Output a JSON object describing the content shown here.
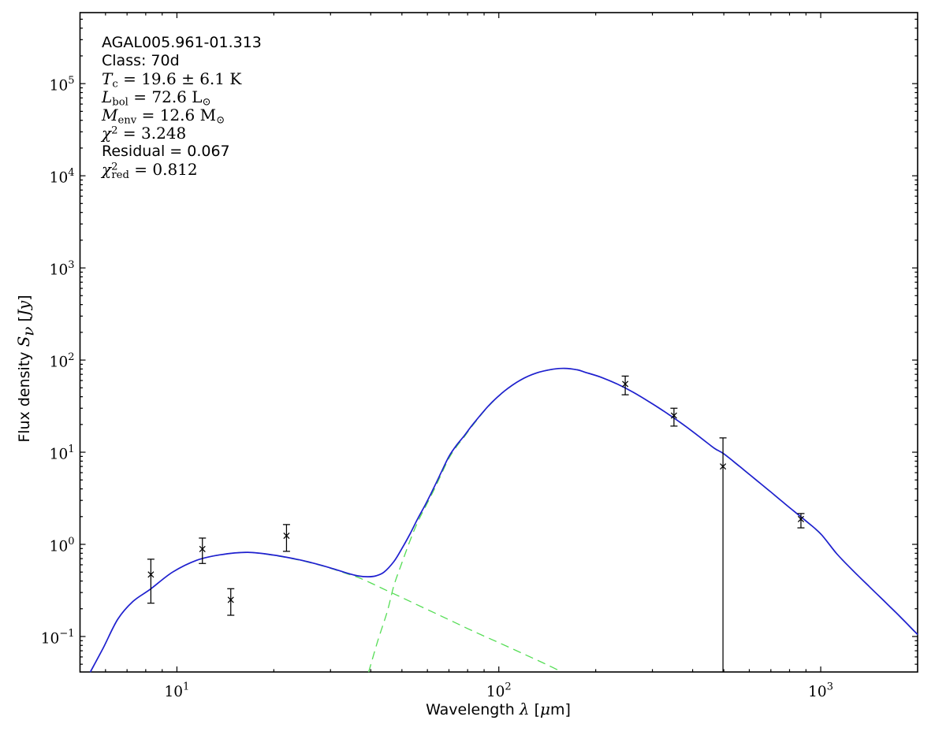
{
  "chart_data": {
    "type": "line",
    "title": "AGAL005.961-01.313",
    "x_scale": "log",
    "y_scale": "log",
    "xlim": [
      5,
      2000
    ],
    "ylim": [
      0.0412,
      590000
    ],
    "xlabel": "Wavelength λ [μm]",
    "ylabel": "Flux density Sν [Jy]",
    "grid": false,
    "legend": null,
    "x_ticks": [
      {
        "value": 10,
        "exp": "1"
      },
      {
        "value": 100,
        "exp": "2"
      },
      {
        "value": 1000,
        "exp": "3"
      }
    ],
    "y_ticks": [
      {
        "value": 0.1,
        "exp": "−1"
      },
      {
        "value": 1,
        "exp": "0"
      },
      {
        "value": 10,
        "exp": "1"
      },
      {
        "value": 100,
        "exp": "2"
      },
      {
        "value": 1000,
        "exp": "3"
      },
      {
        "value": 10000,
        "exp": "4"
      },
      {
        "value": 100000,
        "exp": "5"
      }
    ],
    "annotation_lines": [
      "AGAL005.961-01.313",
      "Class: 70d",
      "Tc = 19.6 ± 6.1 K",
      "Lbol = 72.6 L⊙",
      "Menv = 12.6 M⊙",
      "χ² = 3.248",
      "Residual = 0.067",
      "χ²red = 0.812"
    ],
    "series": [
      {
        "name": "total model fit",
        "style": "solid",
        "color": "#1f1fd0",
        "x": [
          5.38,
          5.9,
          6.55,
          7.3,
          8.26,
          9.7,
          11.5,
          13.6,
          16.6,
          20.2,
          24,
          26.8,
          30,
          33.6,
          36.5,
          39.2,
          41.5,
          44,
          47.2,
          50,
          53,
          56,
          59.3,
          63,
          66,
          70,
          74,
          78,
          83,
          93,
          104,
          117,
          131,
          147,
          160,
          175,
          185,
          208,
          233,
          262,
          294,
          330,
          370,
          415,
          466,
          500,
          560,
          630,
          700,
          790,
          890,
          1000,
          1122,
          1259,
          1413,
          1585,
          1778,
          2000
        ],
        "y": [
          0.041,
          0.075,
          0.154,
          0.24,
          0.325,
          0.5,
          0.67,
          0.77,
          0.82,
          0.76,
          0.68,
          0.62,
          0.555,
          0.49,
          0.455,
          0.445,
          0.455,
          0.5,
          0.65,
          0.9,
          1.3,
          1.9,
          2.75,
          4.2,
          5.9,
          9.0,
          12,
          15,
          20,
          32,
          46,
          61,
          72.5,
          79.5,
          81.2,
          78.5,
          74,
          65,
          55,
          44.6,
          35,
          27,
          20.5,
          15.2,
          11.1,
          9.6,
          7.0,
          5.0,
          3.7,
          2.6,
          1.85,
          1.3,
          0.79,
          0.52,
          0.35,
          0.237,
          0.16,
          0.105
        ]
      },
      {
        "name": "warm component",
        "style": "dashed",
        "color": "#55dd55",
        "x": [
          5.38,
          5.9,
          6.55,
          7.3,
          8.26,
          9.7,
          11.5,
          13.6,
          16.6,
          20.2,
          24,
          26.8,
          30,
          33.6,
          36.6,
          40,
          45,
          50,
          56,
          63,
          70,
          80,
          90,
          100,
          112,
          125,
          140,
          157
        ],
        "y": [
          0.041,
          0.075,
          0.154,
          0.24,
          0.325,
          0.5,
          0.67,
          0.77,
          0.82,
          0.755,
          0.675,
          0.615,
          0.55,
          0.483,
          0.437,
          0.381,
          0.314,
          0.265,
          0.219,
          0.181,
          0.152,
          0.122,
          0.101,
          0.0857,
          0.0717,
          0.0601,
          0.0501,
          0.0412
        ]
      },
      {
        "name": "cold component",
        "style": "dashed",
        "color": "#55dd55",
        "x": [
          39.4,
          42,
          45,
          47.2,
          50,
          53,
          56,
          59.3,
          63,
          66,
          70,
          74,
          78,
          83,
          93,
          104,
          117,
          131,
          147,
          160,
          175,
          185,
          208,
          233,
          262,
          294,
          330,
          370,
          415,
          466,
          500,
          560,
          630,
          700,
          790,
          890,
          1000,
          1122,
          1259,
          1413,
          1585,
          1778,
          2000
        ],
        "y": [
          0.041,
          0.088,
          0.185,
          0.355,
          0.63,
          1.1,
          1.75,
          2.6,
          3.95,
          5.6,
          8.6,
          11.6,
          14.6,
          19.6,
          31.7,
          45.7,
          60.7,
          72.3,
          79.3,
          81.1,
          78.4,
          73.9,
          64.9,
          54.9,
          44.5,
          34.9,
          26.9,
          20.4,
          15.15,
          11.05,
          9.55,
          6.97,
          4.98,
          3.68,
          2.59,
          1.84,
          1.29,
          0.787,
          0.518,
          0.349,
          0.236,
          0.159,
          0.104
        ]
      }
    ],
    "data_points": [
      {
        "x": 8.3,
        "y": 0.47,
        "y_hi": 0.69,
        "y_lo": 0.23,
        "clip_lo": false
      },
      {
        "x": 12.0,
        "y": 0.89,
        "y_hi": 1.17,
        "y_lo": 0.62,
        "clip_lo": false
      },
      {
        "x": 14.7,
        "y": 0.25,
        "y_hi": 0.33,
        "y_lo": 0.17,
        "clip_lo": false
      },
      {
        "x": 21.9,
        "y": 1.24,
        "y_hi": 1.64,
        "y_lo": 0.84,
        "clip_lo": false
      },
      {
        "x": 247,
        "y": 55,
        "y_hi": 67,
        "y_lo": 42,
        "clip_lo": false
      },
      {
        "x": 350,
        "y": 25,
        "y_hi": 30,
        "y_lo": 19.2,
        "clip_lo": false
      },
      {
        "x": 497,
        "y": 7.0,
        "y_hi": 14.3,
        "y_lo": 0.0412,
        "clip_lo": true
      },
      {
        "x": 868,
        "y": 1.88,
        "y_hi": 2.16,
        "y_lo": 1.51,
        "clip_lo": false
      }
    ]
  },
  "annotation_rich": [
    {
      "font": "sans",
      "segs": [
        {
          "t": "AGAL005.961-01.313"
        }
      ]
    },
    {
      "font": "sans",
      "segs": [
        {
          "t": "Class: 70d"
        }
      ]
    },
    {
      "font": "math",
      "segs": [
        {
          "t": "T",
          "it": true
        },
        {
          "t": "c",
          "sub": true
        },
        {
          "t": " = 19.6 ± 6.1 K"
        }
      ]
    },
    {
      "font": "math",
      "segs": [
        {
          "t": "L",
          "it": true
        },
        {
          "t": "bol",
          "sub": true
        },
        {
          "t": " = 72.6 L"
        },
        {
          "t": "⊙",
          "sub": true
        }
      ]
    },
    {
      "font": "math",
      "segs": [
        {
          "t": "M",
          "it": true
        },
        {
          "t": "env",
          "sub": true
        },
        {
          "t": " = 12.6 M"
        },
        {
          "t": "⊙",
          "sub": true
        }
      ]
    },
    {
      "font": "math",
      "segs": [
        {
          "t": "χ",
          "it": true
        },
        {
          "t": "2",
          "sup": true
        },
        {
          "t": " = 3.248"
        }
      ]
    },
    {
      "font": "sans",
      "segs": [
        {
          "t": "Residual = 0.067"
        }
      ]
    },
    {
      "font": "math",
      "segs": [
        {
          "t": "χ",
          "it": true
        },
        {
          "t": "2",
          "sup": true
        },
        {
          "t": "red",
          "sub": true,
          "stack": true
        },
        {
          "t": " = 0.812"
        }
      ]
    }
  ],
  "axis_titles": {
    "x": [
      {
        "t": "Wavelength "
      },
      {
        "t": "λ",
        "it": true
      },
      {
        "t": " ["
      },
      {
        "t": "μ",
        "it": true
      },
      {
        "t": "m]"
      }
    ],
    "y": [
      {
        "t": "Flux density "
      },
      {
        "t": "S",
        "it": true
      },
      {
        "t": "ν",
        "it": true,
        "sub": true
      },
      {
        "t": " ["
      },
      {
        "t": "Jy",
        "it": true
      },
      {
        "t": "]"
      }
    ]
  },
  "styles": {
    "background": "#ffffff",
    "frame_color": "#000000",
    "tick_label_color": "#000000",
    "model_color": "#1f1fd0",
    "component_color": "#55dd55",
    "marker_color": "#000000"
  }
}
